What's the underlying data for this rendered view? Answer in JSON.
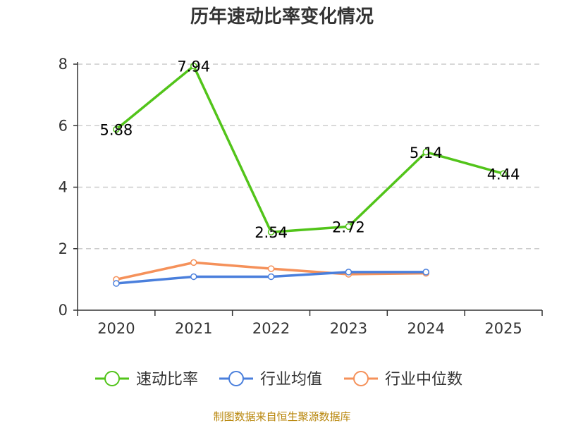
{
  "chart_data": {
    "type": "line",
    "title": "历年速动比率变化情况",
    "categories": [
      "2020",
      "2021",
      "2022",
      "2023",
      "2024",
      "2025"
    ],
    "ylim": [
      0,
      8
    ],
    "yticks": [
      0,
      2,
      4,
      6,
      8
    ],
    "grid": true,
    "legend_position": "bottom",
    "series": [
      {
        "name": "速动比率",
        "color": "#52c41a",
        "values": [
          5.88,
          7.94,
          2.54,
          2.72,
          5.14,
          4.44
        ],
        "labels": [
          "5.88",
          "7.94",
          "2.54",
          "2.72",
          "5.14",
          "4.44"
        ],
        "show_labels": true
      },
      {
        "name": "行业均值",
        "color": "#4a7fdc",
        "values": [
          0.87,
          1.09,
          1.09,
          1.24,
          1.24,
          null
        ],
        "show_labels": false
      },
      {
        "name": "行业中位数",
        "color": "#f5915a",
        "values": [
          1.0,
          1.55,
          1.35,
          1.17,
          1.2,
          null
        ],
        "show_labels": false
      }
    ]
  },
  "footer": {
    "source": "制图数据来自恒生聚源数据库"
  }
}
